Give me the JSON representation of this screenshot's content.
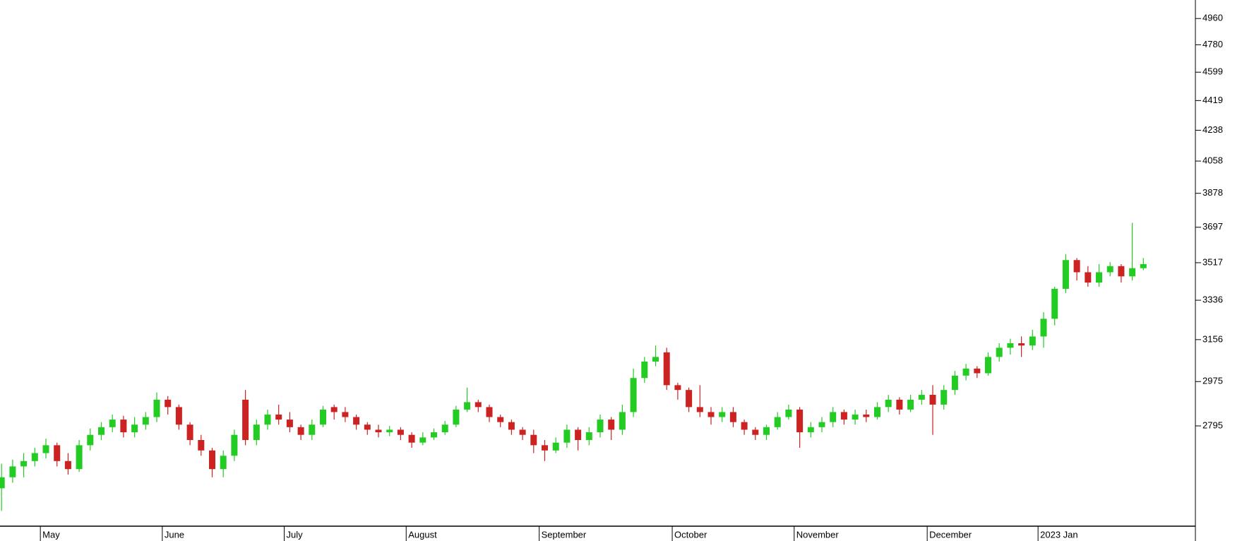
{
  "chart_data": {
    "type": "candlestick",
    "log_scale": true,
    "up_color": "#22cc22",
    "down_color": "#cc2222",
    "ylim": [
      2427,
      5091
    ],
    "yticks": [
      4960,
      4780,
      4599,
      4419,
      4238,
      4058,
      3878,
      3697,
      3517,
      3336,
      3156,
      2975,
      2795
    ],
    "categories": [
      null,
      null,
      null,
      null,
      "May",
      null,
      null,
      null,
      null,
      null,
      null,
      null,
      null,
      null,
      null,
      "June",
      null,
      null,
      null,
      null,
      null,
      null,
      null,
      null,
      null,
      null,
      "July",
      null,
      null,
      null,
      null,
      null,
      null,
      null,
      null,
      null,
      null,
      "August",
      null,
      null,
      null,
      null,
      null,
      null,
      null,
      null,
      null,
      null,
      null,
      "September",
      null,
      null,
      null,
      null,
      null,
      null,
      null,
      null,
      null,
      null,
      null,
      "October",
      null,
      null,
      null,
      null,
      null,
      null,
      null,
      null,
      null,
      null,
      "November",
      null,
      null,
      null,
      null,
      null,
      null,
      null,
      null,
      null,
      null,
      null,
      "December",
      null,
      null,
      null,
      null,
      null,
      null,
      null,
      null,
      null,
      "2023 Jan",
      null,
      null,
      null,
      null,
      null,
      null,
      null,
      null,
      null
    ],
    "open": [
      2560,
      2600,
      2640,
      2660,
      2690,
      2720,
      2660,
      2630,
      2720,
      2760,
      2790,
      2820,
      2770,
      2800,
      2830,
      2900,
      2870,
      2800,
      2740,
      2700,
      2630,
      2680,
      2900,
      2740,
      2800,
      2840,
      2820,
      2790,
      2760,
      2800,
      2870,
      2850,
      2830,
      2800,
      2780,
      2770,
      2780,
      2760,
      2730,
      2750,
      2770,
      2800,
      2860,
      2890,
      2870,
      2830,
      2810,
      2780,
      2760,
      2720,
      2700,
      2730,
      2780,
      2740,
      2770,
      2820,
      2780,
      2850,
      2990,
      3060,
      3100,
      2960,
      2940,
      2870,
      2850,
      2830,
      2850,
      2810,
      2780,
      2760,
      2790,
      2830,
      2860,
      2770,
      2790,
      2810,
      2850,
      2820,
      2840,
      2830,
      2870,
      2900,
      2860,
      2900,
      2920,
      2880,
      2940,
      3000,
      3030,
      3010,
      3080,
      3120,
      3140,
      3130,
      3170,
      3250,
      3390,
      3530,
      3470,
      3420,
      3470,
      3500,
      3450,
      3490
    ],
    "high": [
      2650,
      2665,
      2690,
      2710,
      2745,
      2730,
      2690,
      2740,
      2785,
      2810,
      2840,
      2835,
      2830,
      2850,
      2930,
      2915,
      2880,
      2810,
      2760,
      2710,
      2700,
      2780,
      2940,
      2820,
      2860,
      2880,
      2850,
      2800,
      2820,
      2875,
      2880,
      2870,
      2840,
      2810,
      2800,
      2795,
      2790,
      2770,
      2770,
      2785,
      2815,
      2875,
      2950,
      2900,
      2880,
      2840,
      2820,
      2790,
      2780,
      2740,
      2750,
      2800,
      2790,
      2790,
      2840,
      2830,
      2880,
      3030,
      3080,
      3130,
      3120,
      2970,
      2950,
      2960,
      2870,
      2870,
      2870,
      2820,
      2790,
      2800,
      2850,
      2880,
      2870,
      2810,
      2830,
      2870,
      2860,
      2860,
      2860,
      2890,
      2920,
      2910,
      2920,
      2940,
      2960,
      2960,
      3020,
      3050,
      3040,
      3100,
      3140,
      3160,
      3170,
      3200,
      3280,
      3400,
      3560,
      3540,
      3500,
      3510,
      3520,
      3510,
      3720,
      3540
    ],
    "low": [
      2480,
      2580,
      2600,
      2640,
      2670,
      2640,
      2610,
      2620,
      2700,
      2740,
      2770,
      2750,
      2750,
      2780,
      2810,
      2840,
      2780,
      2720,
      2680,
      2600,
      2600,
      2660,
      2720,
      2720,
      2780,
      2800,
      2770,
      2740,
      2740,
      2790,
      2820,
      2810,
      2780,
      2760,
      2750,
      2755,
      2740,
      2710,
      2720,
      2740,
      2760,
      2790,
      2850,
      2850,
      2810,
      2790,
      2760,
      2740,
      2690,
      2660,
      2690,
      2710,
      2700,
      2720,
      2750,
      2740,
      2760,
      2830,
      2970,
      3040,
      2940,
      2900,
      2850,
      2830,
      2800,
      2810,
      2790,
      2760,
      2740,
      2740,
      2780,
      2820,
      2710,
      2750,
      2770,
      2790,
      2800,
      2800,
      2810,
      2820,
      2850,
      2840,
      2850,
      2880,
      2760,
      2860,
      2920,
      2980,
      2990,
      3000,
      3060,
      3090,
      3080,
      3110,
      3120,
      3220,
      3370,
      3430,
      3400,
      3400,
      3450,
      3420,
      3430,
      3480
    ],
    "close": [
      2600,
      2640,
      2660,
      2690,
      2720,
      2660,
      2630,
      2720,
      2760,
      2790,
      2820,
      2770,
      2800,
      2830,
      2900,
      2870,
      2800,
      2740,
      2700,
      2630,
      2680,
      2760,
      2740,
      2800,
      2840,
      2820,
      2790,
      2760,
      2800,
      2860,
      2850,
      2830,
      2800,
      2780,
      2770,
      2780,
      2760,
      2730,
      2750,
      2770,
      2800,
      2860,
      2890,
      2870,
      2830,
      2810,
      2780,
      2760,
      2720,
      2700,
      2730,
      2780,
      2740,
      2770,
      2820,
      2780,
      2850,
      2990,
      3060,
      3080,
      2960,
      2940,
      2870,
      2850,
      2830,
      2850,
      2810,
      2780,
      2760,
      2790,
      2830,
      2860,
      2770,
      2790,
      2810,
      2850,
      2820,
      2840,
      2830,
      2870,
      2900,
      2860,
      2900,
      2920,
      2880,
      2940,
      3000,
      3030,
      3010,
      3080,
      3120,
      3140,
      3130,
      3170,
      3250,
      3390,
      3530,
      3470,
      3420,
      3470,
      3500,
      3450,
      3490,
      3510
    ]
  }
}
